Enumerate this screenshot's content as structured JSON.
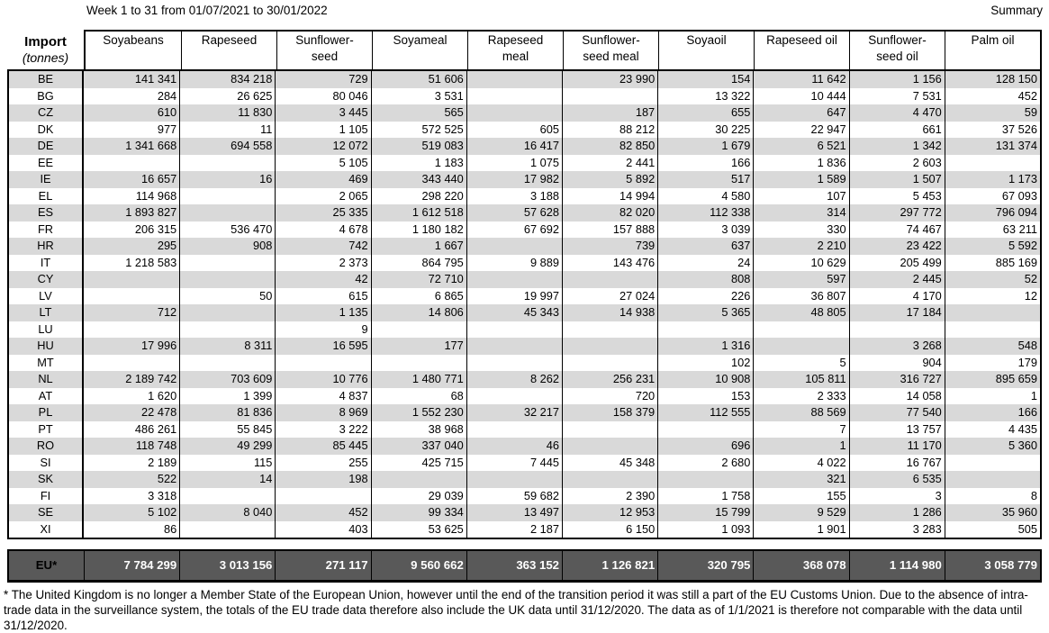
{
  "header": {
    "title": "Week 1 to 31 from 01/07/2021 to 30/01/2022",
    "summary_label": "Summary"
  },
  "table": {
    "corner_label": "Import",
    "corner_sublabel": "(tonnes)",
    "columns": [
      "Soyabeans",
      "Rapeseed",
      "Sunflower-\nseed",
      "Soyameal",
      "Rapeseed\nmeal",
      "Sunflower-\nseed meal",
      "Soyaoil",
      "Rapeseed oil",
      "Sunflower-\nseed oil",
      "Palm oil"
    ],
    "rows": [
      {
        "country": "BE",
        "values": [
          "141 341",
          "834 218",
          "729",
          "51 606",
          "",
          "23 990",
          "154",
          "11 642",
          "1 156",
          "128 150"
        ]
      },
      {
        "country": "BG",
        "values": [
          "284",
          "26 625",
          "80 046",
          "3 531",
          "",
          "",
          "13 322",
          "10 444",
          "7 531",
          "452"
        ]
      },
      {
        "country": "CZ",
        "values": [
          "610",
          "11 830",
          "3 445",
          "565",
          "",
          "187",
          "655",
          "647",
          "4 470",
          "59"
        ]
      },
      {
        "country": "DK",
        "values": [
          "977",
          "11",
          "1 105",
          "572 525",
          "605",
          "88 212",
          "30 225",
          "22 947",
          "661",
          "37 526"
        ]
      },
      {
        "country": "DE",
        "values": [
          "1 341 668",
          "694 558",
          "12 072",
          "519 083",
          "16 417",
          "82 850",
          "1 679",
          "6 521",
          "1 342",
          "131 374"
        ]
      },
      {
        "country": "EE",
        "values": [
          "",
          "",
          "5 105",
          "1 183",
          "1 075",
          "2 441",
          "166",
          "1 836",
          "2 603",
          ""
        ]
      },
      {
        "country": "IE",
        "values": [
          "16 657",
          "16",
          "469",
          "343 440",
          "17 982",
          "5 892",
          "517",
          "1 589",
          "1 507",
          "1 173"
        ]
      },
      {
        "country": "EL",
        "values": [
          "114 968",
          "",
          "2 065",
          "298 220",
          "3 188",
          "14 994",
          "4 580",
          "107",
          "5 453",
          "67 093"
        ]
      },
      {
        "country": "ES",
        "values": [
          "1 893 827",
          "",
          "25 335",
          "1 612 518",
          "57 628",
          "82 020",
          "112 338",
          "314",
          "297 772",
          "796 094"
        ]
      },
      {
        "country": "FR",
        "values": [
          "206 315",
          "536 470",
          "4 678",
          "1 180 182",
          "67 692",
          "157 888",
          "3 039",
          "330",
          "74 467",
          "63 211"
        ]
      },
      {
        "country": "HR",
        "values": [
          "295",
          "908",
          "742",
          "1 667",
          "",
          "739",
          "637",
          "2 210",
          "23 422",
          "5 592"
        ]
      },
      {
        "country": "IT",
        "values": [
          "1 218 583",
          "",
          "2 373",
          "864 795",
          "9 889",
          "143 476",
          "24",
          "10 629",
          "205 499",
          "885 169"
        ]
      },
      {
        "country": "CY",
        "values": [
          "",
          "",
          "42",
          "72 710",
          "",
          "",
          "808",
          "597",
          "2 445",
          "52"
        ]
      },
      {
        "country": "LV",
        "values": [
          "",
          "50",
          "615",
          "6 865",
          "19 997",
          "27 024",
          "226",
          "36 807",
          "4 170",
          "12"
        ]
      },
      {
        "country": "LT",
        "values": [
          "712",
          "",
          "1 135",
          "14 806",
          "45 343",
          "14 938",
          "5 365",
          "48 805",
          "17 184",
          ""
        ]
      },
      {
        "country": "LU",
        "values": [
          "",
          "",
          "9",
          "",
          "",
          "",
          "",
          "",
          "",
          ""
        ]
      },
      {
        "country": "HU",
        "values": [
          "17 996",
          "8 311",
          "16 595",
          "177",
          "",
          "",
          "1 316",
          "",
          "3 268",
          "548"
        ]
      },
      {
        "country": "MT",
        "values": [
          "",
          "",
          "",
          "",
          "",
          "",
          "102",
          "5",
          "904",
          "179"
        ]
      },
      {
        "country": "NL",
        "values": [
          "2 189 742",
          "703 609",
          "10 776",
          "1 480 771",
          "8 262",
          "256 231",
          "10 908",
          "105 811",
          "316 727",
          "895 659"
        ]
      },
      {
        "country": "AT",
        "values": [
          "1 620",
          "1 399",
          "4 837",
          "68",
          "",
          "720",
          "153",
          "2 333",
          "14 058",
          "1"
        ]
      },
      {
        "country": "PL",
        "values": [
          "22 478",
          "81 836",
          "8 969",
          "1 552 230",
          "32 217",
          "158 379",
          "112 555",
          "88 569",
          "77 540",
          "166"
        ]
      },
      {
        "country": "PT",
        "values": [
          "486 261",
          "55 845",
          "3 222",
          "38 968",
          "",
          "",
          "",
          "7",
          "13 757",
          "4 435"
        ]
      },
      {
        "country": "RO",
        "values": [
          "118 748",
          "49 299",
          "85 445",
          "337 040",
          "46",
          "",
          "696",
          "1",
          "11 170",
          "5 360"
        ]
      },
      {
        "country": "SI",
        "values": [
          "2 189",
          "115",
          "255",
          "425 715",
          "7 445",
          "45 348",
          "2 680",
          "4 022",
          "16 767",
          ""
        ]
      },
      {
        "country": "SK",
        "values": [
          "522",
          "14",
          "198",
          "",
          "",
          "",
          "",
          "321",
          "6 535",
          ""
        ]
      },
      {
        "country": "FI",
        "values": [
          "3 318",
          "",
          "",
          "29 039",
          "59 682",
          "2 390",
          "1 758",
          "155",
          "3",
          "8"
        ]
      },
      {
        "country": "SE",
        "values": [
          "5 102",
          "8 040",
          "452",
          "99 334",
          "13 497",
          "12 953",
          "15 799",
          "9 529",
          "1 286",
          "35 960"
        ]
      },
      {
        "country": "XI",
        "values": [
          "86",
          "",
          "403",
          "53 625",
          "2 187",
          "6 150",
          "1 093",
          "1 901",
          "3 283",
          "505"
        ]
      }
    ],
    "total": {
      "label": "EU*",
      "values": [
        "7 784 299",
        "3 013 156",
        "271 117",
        "9 560 662",
        "363 152",
        "1 126 821",
        "320 795",
        "368 078",
        "1 114 980",
        "3 058 779"
      ]
    }
  },
  "footnote": "* The United Kingdom is no longer a Member State of the European Union, however until the end of the transition period it was still a part of the EU Customs Union. Due to the absence of intra-trade data in the surveillance system, the totals of the EU trade data  therefore also include the UK data until 31/12/2020. The data as of 1/1/2021 is therefore not comparable with the data until 31/12/2020.",
  "colors": {
    "row_stripe": "#d9d9d9",
    "total_band_bg": "#595959",
    "total_value_text": "#ffffff",
    "border": "#000000"
  }
}
